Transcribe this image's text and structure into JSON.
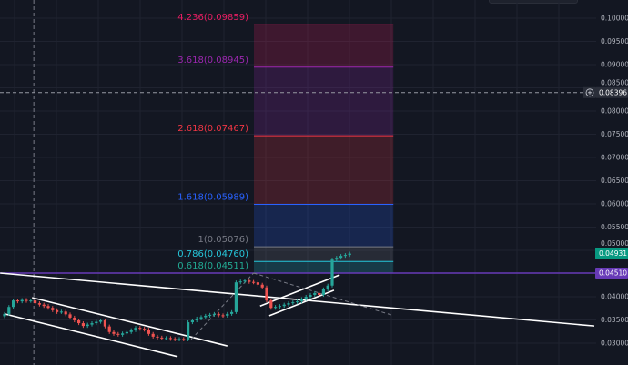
{
  "chart_data": {
    "type": "candlestick",
    "title": "",
    "xlabel": "",
    "ylabel": "",
    "ylim": [
      0.0283,
      0.1039
    ],
    "grid": true,
    "y_ticks": [
      "0.10000",
      "0.09500",
      "0.09000",
      "0.08500",
      "0.08000",
      "0.07500",
      "0.07000",
      "0.06500",
      "0.06000",
      "0.05500",
      "0.05000",
      "0.04000",
      "0.03500",
      "0.03000"
    ],
    "y_tick_values": [
      0.1,
      0.095,
      0.09,
      0.085,
      0.08,
      0.075,
      0.07,
      0.065,
      0.06,
      0.055,
      0.05,
      0.04,
      0.035,
      0.03
    ],
    "candles_close": [
      0.0363,
      0.0378,
      0.0392,
      0.039,
      0.0393,
      0.0391,
      0.0392,
      0.0386,
      0.0383,
      0.038,
      0.0376,
      0.0371,
      0.0367,
      0.0368,
      0.0362,
      0.0355,
      0.0349,
      0.0343,
      0.0337,
      0.034,
      0.0343,
      0.0346,
      0.0349,
      0.0336,
      0.0324,
      0.032,
      0.0318,
      0.0321,
      0.0324,
      0.0328,
      0.0333,
      0.0331,
      0.0329,
      0.032,
      0.0314,
      0.0312,
      0.031,
      0.0311,
      0.0309,
      0.0308,
      0.0309,
      0.0308,
      0.0345,
      0.0349,
      0.0353,
      0.0356,
      0.0359,
      0.0361,
      0.0363,
      0.036,
      0.0359,
      0.0363,
      0.0367,
      0.0431,
      0.0433,
      0.0435,
      0.0432,
      0.0431,
      0.0426,
      0.042,
      0.0392,
      0.0376,
      0.0378,
      0.038,
      0.0383,
      0.0386,
      0.0388,
      0.039,
      0.0395,
      0.04,
      0.0404,
      0.0408,
      0.0404,
      0.0416,
      0.0424,
      0.048,
      0.0484,
      0.0488,
      0.049,
      0.0493
    ],
    "candles_first_open": 0.0358,
    "colors": {
      "up": "#26a69a",
      "down": "#ef5350",
      "background": "#131722"
    },
    "fib_extension": {
      "levels": [
        {
          "ratio": 0.618,
          "price": 0.04511,
          "label": "0.618(0.04511)",
          "color": "#22ab94"
        },
        {
          "ratio": 0.786,
          "price": 0.0476,
          "label": "0.786(0.04760)",
          "color": "#26c6da"
        },
        {
          "ratio": 1,
          "price": 0.05076,
          "label": "1(0.05076)",
          "color": "#787b86"
        },
        {
          "ratio": 1.618,
          "price": 0.05989,
          "label": "1.618(0.05989)",
          "color": "#2962ff"
        },
        {
          "ratio": 2.618,
          "price": 0.07467,
          "label": "2.618(0.07467)",
          "color": "#f23645"
        },
        {
          "ratio": 3.618,
          "price": 0.08945,
          "label": "3.618(0.08945)",
          "color": "#9c27b0"
        },
        {
          "ratio": 4.236,
          "price": 0.09859,
          "label": "4.236(0.09859)",
          "color": "#e91e63"
        }
      ],
      "start_index": 57,
      "end_index": 89
    },
    "trend_lines": [
      {
        "from": [
          -1,
          0.0451
        ],
        "to": [
          135,
          0.0337
        ],
        "color": "#ffffff",
        "style": "solid"
      },
      {
        "from": [
          6.3,
          0.0398
        ],
        "to": [
          51,
          0.0294
        ],
        "color": "#ffffff",
        "style": "solid"
      },
      {
        "from": [
          0,
          0.0363
        ],
        "to": [
          39.6,
          0.0271
        ],
        "color": "#ffffff",
        "style": "solid"
      },
      {
        "from": [
          58.5,
          0.038
        ],
        "to": [
          76.7,
          0.0447
        ],
        "color": "#ffffff",
        "style": "solid"
      },
      {
        "from": [
          60.6,
          0.0359
        ],
        "to": [
          75.4,
          0.0414
        ],
        "color": "#ffffff",
        "style": "solid"
      },
      {
        "from": [
          42.7,
          0.0308
        ],
        "to": [
          57,
          0.0451
        ],
        "color": "#787b86",
        "style": "dashed"
      },
      {
        "from": [
          57,
          0.0451
        ],
        "to": [
          88.5,
          0.0361
        ],
        "color": "#787b86",
        "style": "dashed"
      }
    ],
    "horizontal_lines": [
      {
        "price": 0.0451,
        "label": "0.04510",
        "color": "#673ab7",
        "style": "solid"
      },
      {
        "price": 0.08396,
        "label": "0.08396",
        "color": "#9598a1",
        "style": "dashed"
      }
    ],
    "vertical_line_index": 6.7,
    "last_price": {
      "price": 0.04931,
      "label": "0.04931",
      "color": "#089981"
    },
    "crosshair_icon": "plus-circle-icon"
  }
}
